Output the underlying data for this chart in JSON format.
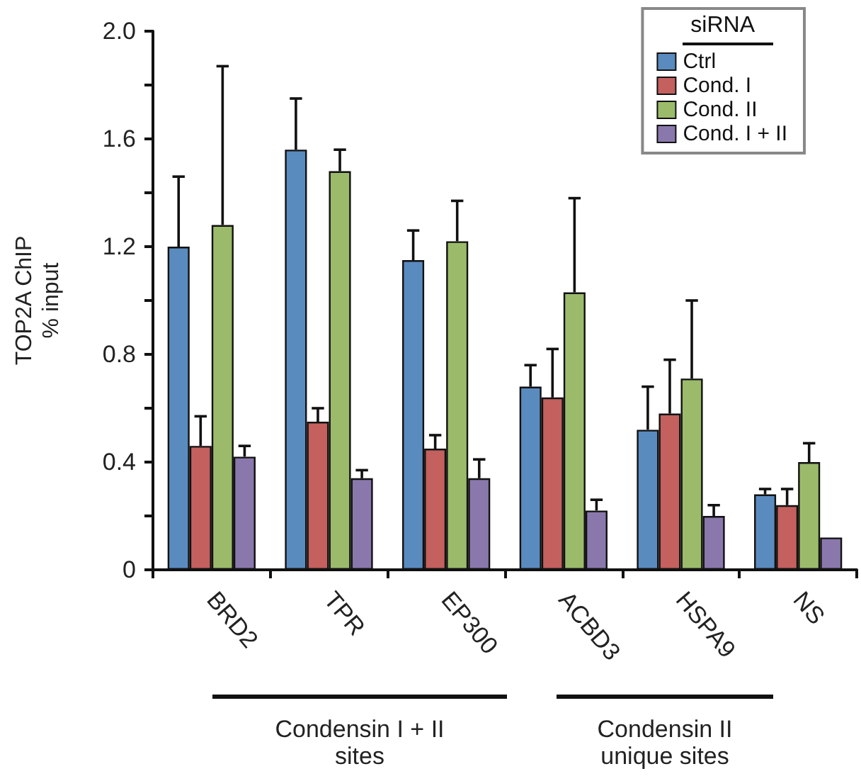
{
  "chart_data": {
    "type": "bar",
    "ylabel": "TOP2A ChIP\n% input",
    "legend_title": "siRNA",
    "legend": "top right",
    "grid": false,
    "categories": [
      "BRD2",
      "TPR",
      "EP300",
      "ACBD3",
      "HSPA9",
      "NS"
    ],
    "ylim": [
      0,
      2
    ],
    "yticks": [
      0,
      {
        "value": 0.2,
        "label": null
      },
      0.4,
      {
        "value": 0.6,
        "label": null
      },
      0.8,
      {
        "value": 1.0,
        "label": null
      },
      1.2,
      {
        "value": 1.4,
        "label": null
      },
      1.6,
      {
        "value": 1.8,
        "label": null
      },
      {
        "value": 2,
        "label": "2.0"
      }
    ],
    "series": [
      {
        "name": "Ctrl",
        "color": "#5a8bbf",
        "values": [
          1.2,
          1.56,
          1.15,
          0.68,
          0.52,
          0.28
        ],
        "errors": [
          [
            1.2,
            1.46
          ],
          [
            1.56,
            1.75
          ],
          [
            1.15,
            1.26
          ],
          [
            0.68,
            0.76
          ],
          [
            0.52,
            0.68
          ],
          [
            0.28,
            0.3
          ]
        ]
      },
      {
        "name": "Cond. I",
        "color": "#c4605e",
        "values": [
          0.46,
          0.55,
          0.45,
          0.64,
          0.58,
          0.24
        ],
        "errors": [
          [
            0.46,
            0.57
          ],
          [
            0.55,
            0.6
          ],
          [
            0.45,
            0.5
          ],
          [
            0.64,
            0.82
          ],
          [
            0.58,
            0.78
          ],
          [
            0.24,
            0.3
          ]
        ]
      },
      {
        "name": "Cond. II",
        "color": "#9bbb6a",
        "values": [
          1.28,
          1.48,
          1.22,
          1.03,
          0.71,
          0.4
        ],
        "errors": [
          [
            1.28,
            1.87
          ],
          [
            1.48,
            1.56
          ],
          [
            1.22,
            1.37
          ],
          [
            1.03,
            1.38
          ],
          [
            0.71,
            1.0
          ],
          [
            0.4,
            0.47
          ]
        ]
      },
      {
        "name": "Cond. I + II",
        "color": "#8a78ac",
        "values": [
          0.42,
          0.34,
          0.34,
          0.22,
          0.2,
          0.12
        ],
        "errors": [
          [
            0.42,
            0.46
          ],
          [
            0.34,
            0.37
          ],
          [
            0.34,
            0.41
          ],
          [
            0.22,
            0.26
          ],
          [
            0.2,
            0.24
          ],
          null
        ]
      }
    ],
    "annotations": [
      "Condensin I + II\nsites",
      "Condensin II\nunique sites"
    ]
  }
}
